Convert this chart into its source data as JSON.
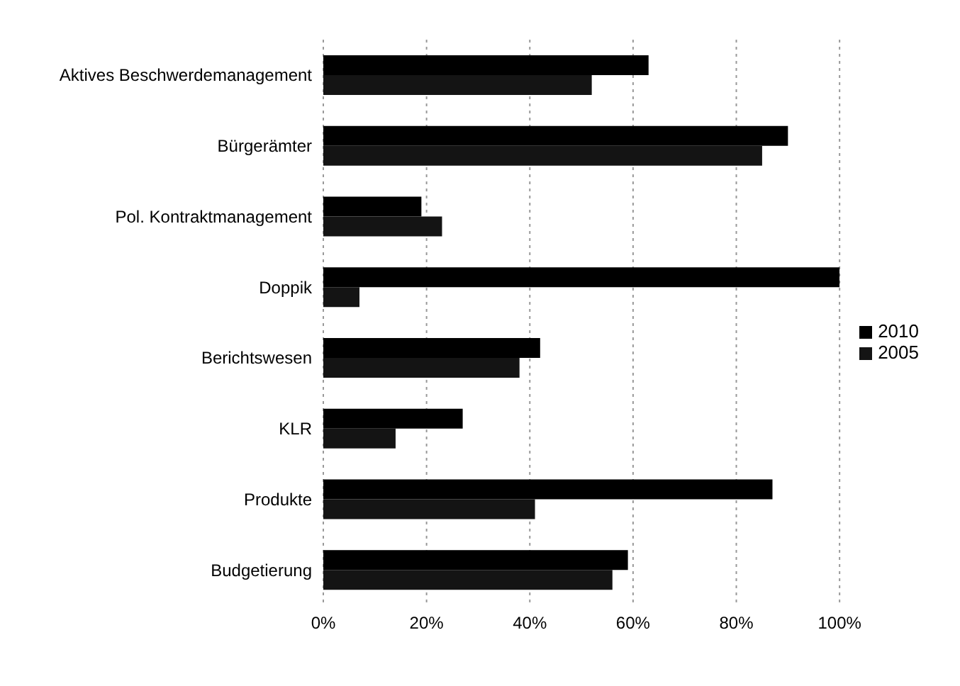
{
  "chart_data": {
    "type": "bar",
    "orientation": "horizontal",
    "categories": [
      "Aktives Beschwerdemanagement",
      "Bürgerämter",
      "Pol. Kontraktmanagement",
      "Doppik",
      "Berichtswesen",
      "KLR",
      "Produkte",
      "Budgetierung"
    ],
    "series": [
      {
        "name": "2010",
        "color": "#000000",
        "values": [
          63,
          90,
          19,
          100,
          42,
          27,
          87,
          59
        ]
      },
      {
        "name": "2005",
        "color": "#141414",
        "values": [
          52,
          85,
          23,
          7,
          38,
          14,
          41,
          56
        ]
      }
    ],
    "xlim": [
      0,
      100
    ],
    "xticks": [
      {
        "value": 0,
        "label": "0%"
      },
      {
        "value": 20,
        "label": "20%"
      },
      {
        "value": 40,
        "label": "40%"
      },
      {
        "value": 60,
        "label": "60%"
      },
      {
        "value": 80,
        "label": "80%"
      },
      {
        "value": 100,
        "label": "100%"
      }
    ],
    "grid": "x",
    "legend": "right"
  }
}
